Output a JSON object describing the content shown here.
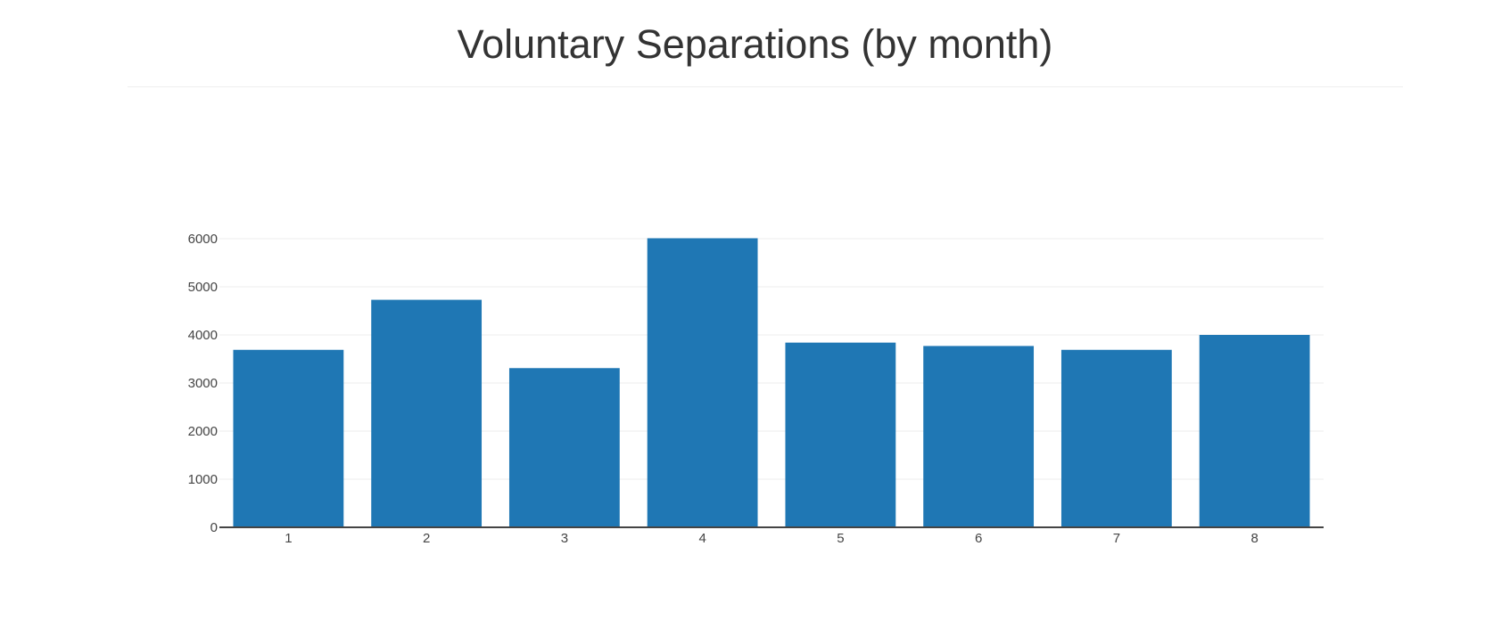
{
  "title": "Voluntary Separations (by month)",
  "colors": {
    "bar": "#1f77b4",
    "grid": "#eeeeee",
    "axis": "#444444",
    "title": "#333333"
  },
  "chart_data": {
    "type": "bar",
    "title": "Voluntary Separations (by month)",
    "xlabel": "",
    "ylabel": "",
    "categories": [
      "1",
      "2",
      "3",
      "4",
      "5",
      "6",
      "7",
      "8"
    ],
    "values": [
      3690,
      4730,
      3310,
      6010,
      3840,
      3770,
      3690,
      4000
    ],
    "ylim": [
      0,
      6000
    ],
    "yticks": [
      0,
      1000,
      2000,
      3000,
      4000,
      5000,
      6000
    ],
    "grid": true,
    "legend": "none"
  }
}
